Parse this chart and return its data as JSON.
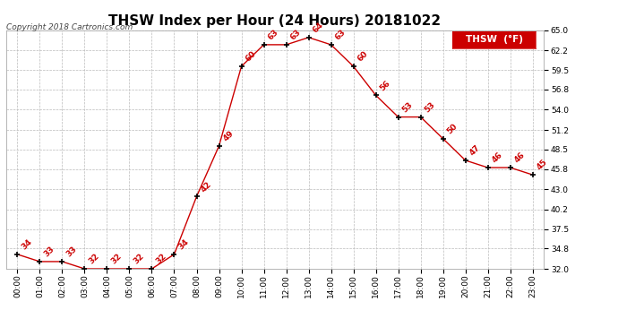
{
  "title": "THSW Index per Hour (24 Hours) 20181022",
  "copyright": "Copyright 2018 Cartronics.com",
  "legend_label": "THSW  (°F)",
  "hours": [
    "00:00",
    "01:00",
    "02:00",
    "03:00",
    "04:00",
    "05:00",
    "06:00",
    "07:00",
    "08:00",
    "09:00",
    "10:00",
    "11:00",
    "12:00",
    "13:00",
    "14:00",
    "15:00",
    "16:00",
    "17:00",
    "18:00",
    "19:00",
    "20:00",
    "21:00",
    "22:00",
    "23:00"
  ],
  "values": [
    34,
    33,
    33,
    32,
    32,
    32,
    32,
    34,
    42,
    49,
    60,
    63,
    63,
    64,
    63,
    60,
    56,
    53,
    53,
    50,
    47,
    46,
    46,
    45
  ],
  "line_color": "#cc0000",
  "marker_color": "#000000",
  "label_color": "#cc0000",
  "background_color": "#ffffff",
  "grid_color": "#bbbbbb",
  "ylim_min": 32.0,
  "ylim_max": 65.0,
  "yticks": [
    32.0,
    34.8,
    37.5,
    40.2,
    43.0,
    45.8,
    48.5,
    51.2,
    54.0,
    56.8,
    59.5,
    62.2,
    65.0
  ],
  "title_fontsize": 11,
  "label_fontsize": 6.5,
  "tick_fontsize": 6.5,
  "copyright_fontsize": 6.5,
  "legend_fontsize": 7.5
}
